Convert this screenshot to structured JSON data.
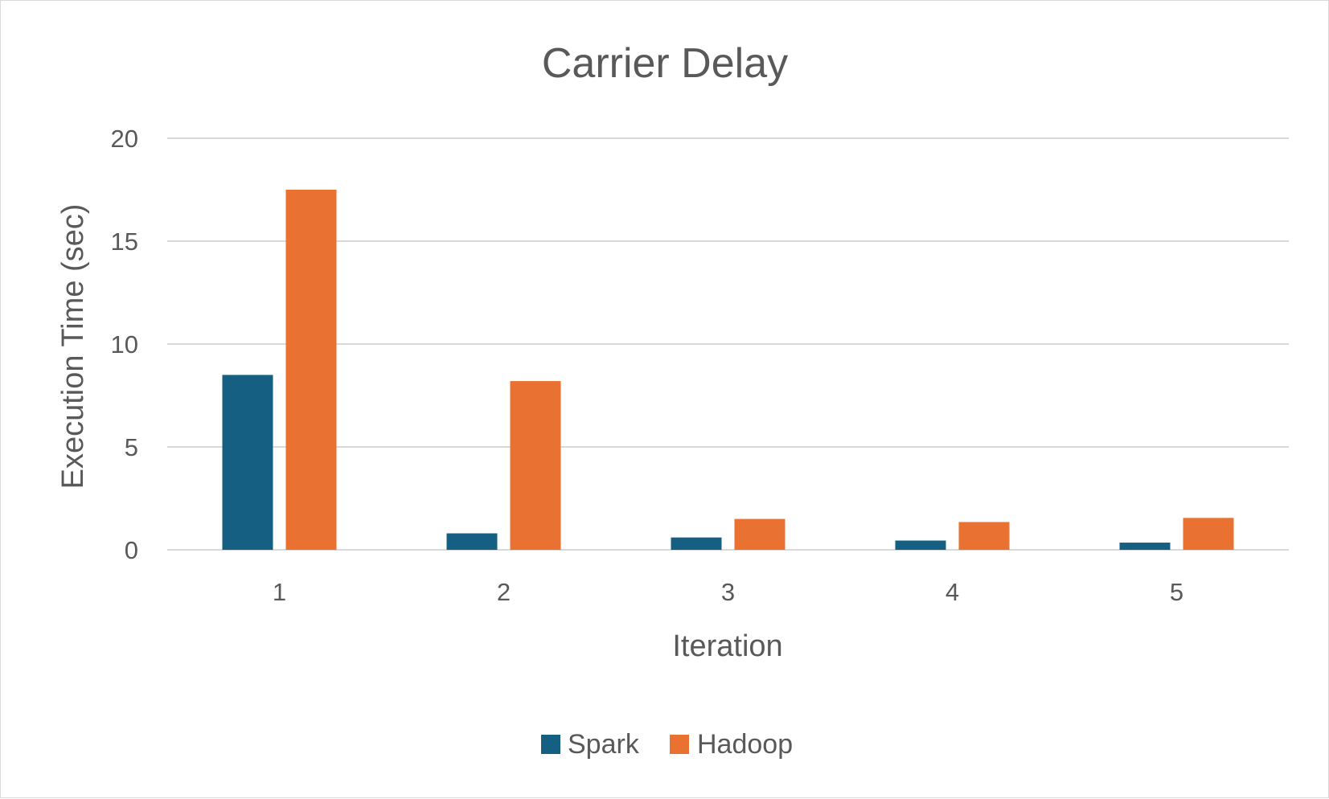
{
  "chart_data": {
    "type": "bar",
    "title": "Carrier Delay",
    "xlabel": "Iteration",
    "ylabel": "Execution Time (sec)",
    "categories": [
      "1",
      "2",
      "3",
      "4",
      "5"
    ],
    "series": [
      {
        "name": "Spark",
        "color": "#156082",
        "values": [
          8.5,
          0.8,
          0.6,
          0.45,
          0.35
        ]
      },
      {
        "name": "Hadoop",
        "color": "#E97132",
        "values": [
          17.5,
          8.2,
          1.5,
          1.35,
          1.55
        ]
      }
    ],
    "ylim": [
      0,
      20
    ],
    "yticks": [
      "0",
      "5",
      "10",
      "15",
      "20"
    ],
    "grid": true,
    "legend_position": "bottom"
  }
}
